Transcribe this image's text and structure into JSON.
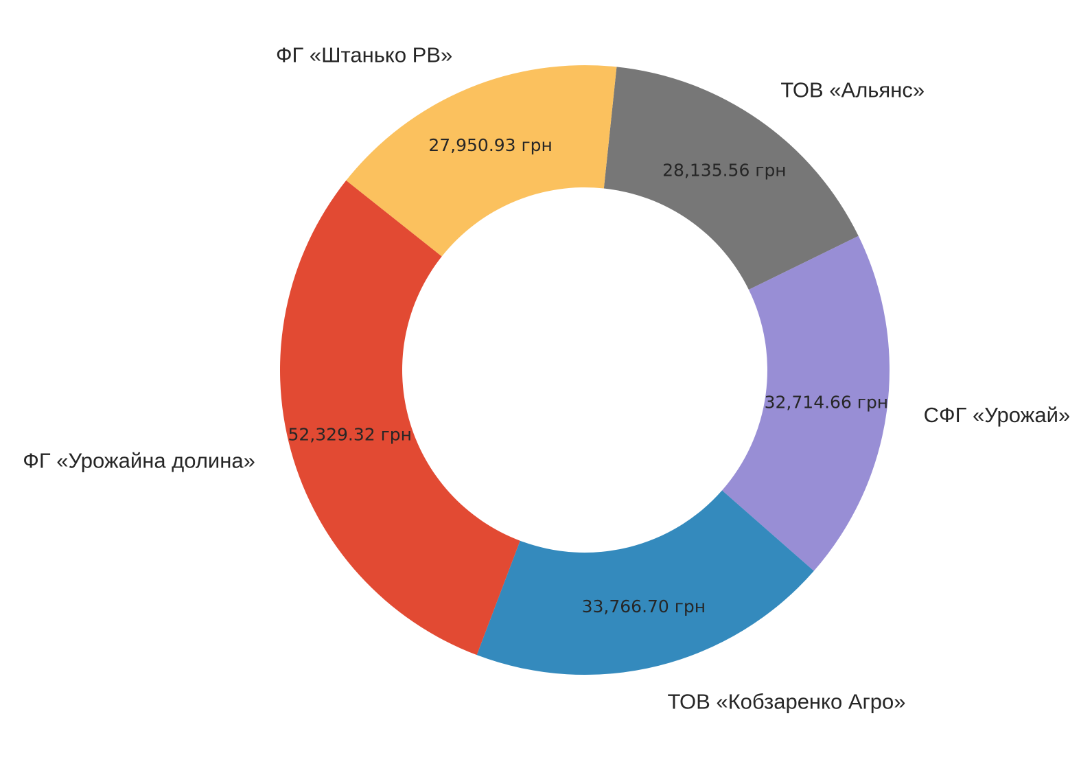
{
  "chart_data": {
    "type": "pie",
    "donut": true,
    "start_angle_deg": 84,
    "direction": "clockwise",
    "slices": [
      {
        "label": "ТОВ «Альянс»",
        "value": 28135.56,
        "value_label": "28,135.56 грн",
        "color": "#777777"
      },
      {
        "label": "СФГ «Урожай»",
        "value": 32714.66,
        "value_label": "32,714.66 грн",
        "color": "#988ED5"
      },
      {
        "label": "ТОВ «Кобзаренко Агро»",
        "value": 33766.7,
        "value_label": "33,766.70 грн",
        "color": "#348ABD"
      },
      {
        "label": "ФГ «Урожайна долина»",
        "value": 52329.32,
        "value_label": "52,329.32 грн",
        "color": "#E24A33"
      },
      {
        "label": "ФГ «Штанько РВ»",
        "value": 27950.93,
        "value_label": "27,950.93 грн",
        "color": "#FBC15E"
      }
    ]
  }
}
